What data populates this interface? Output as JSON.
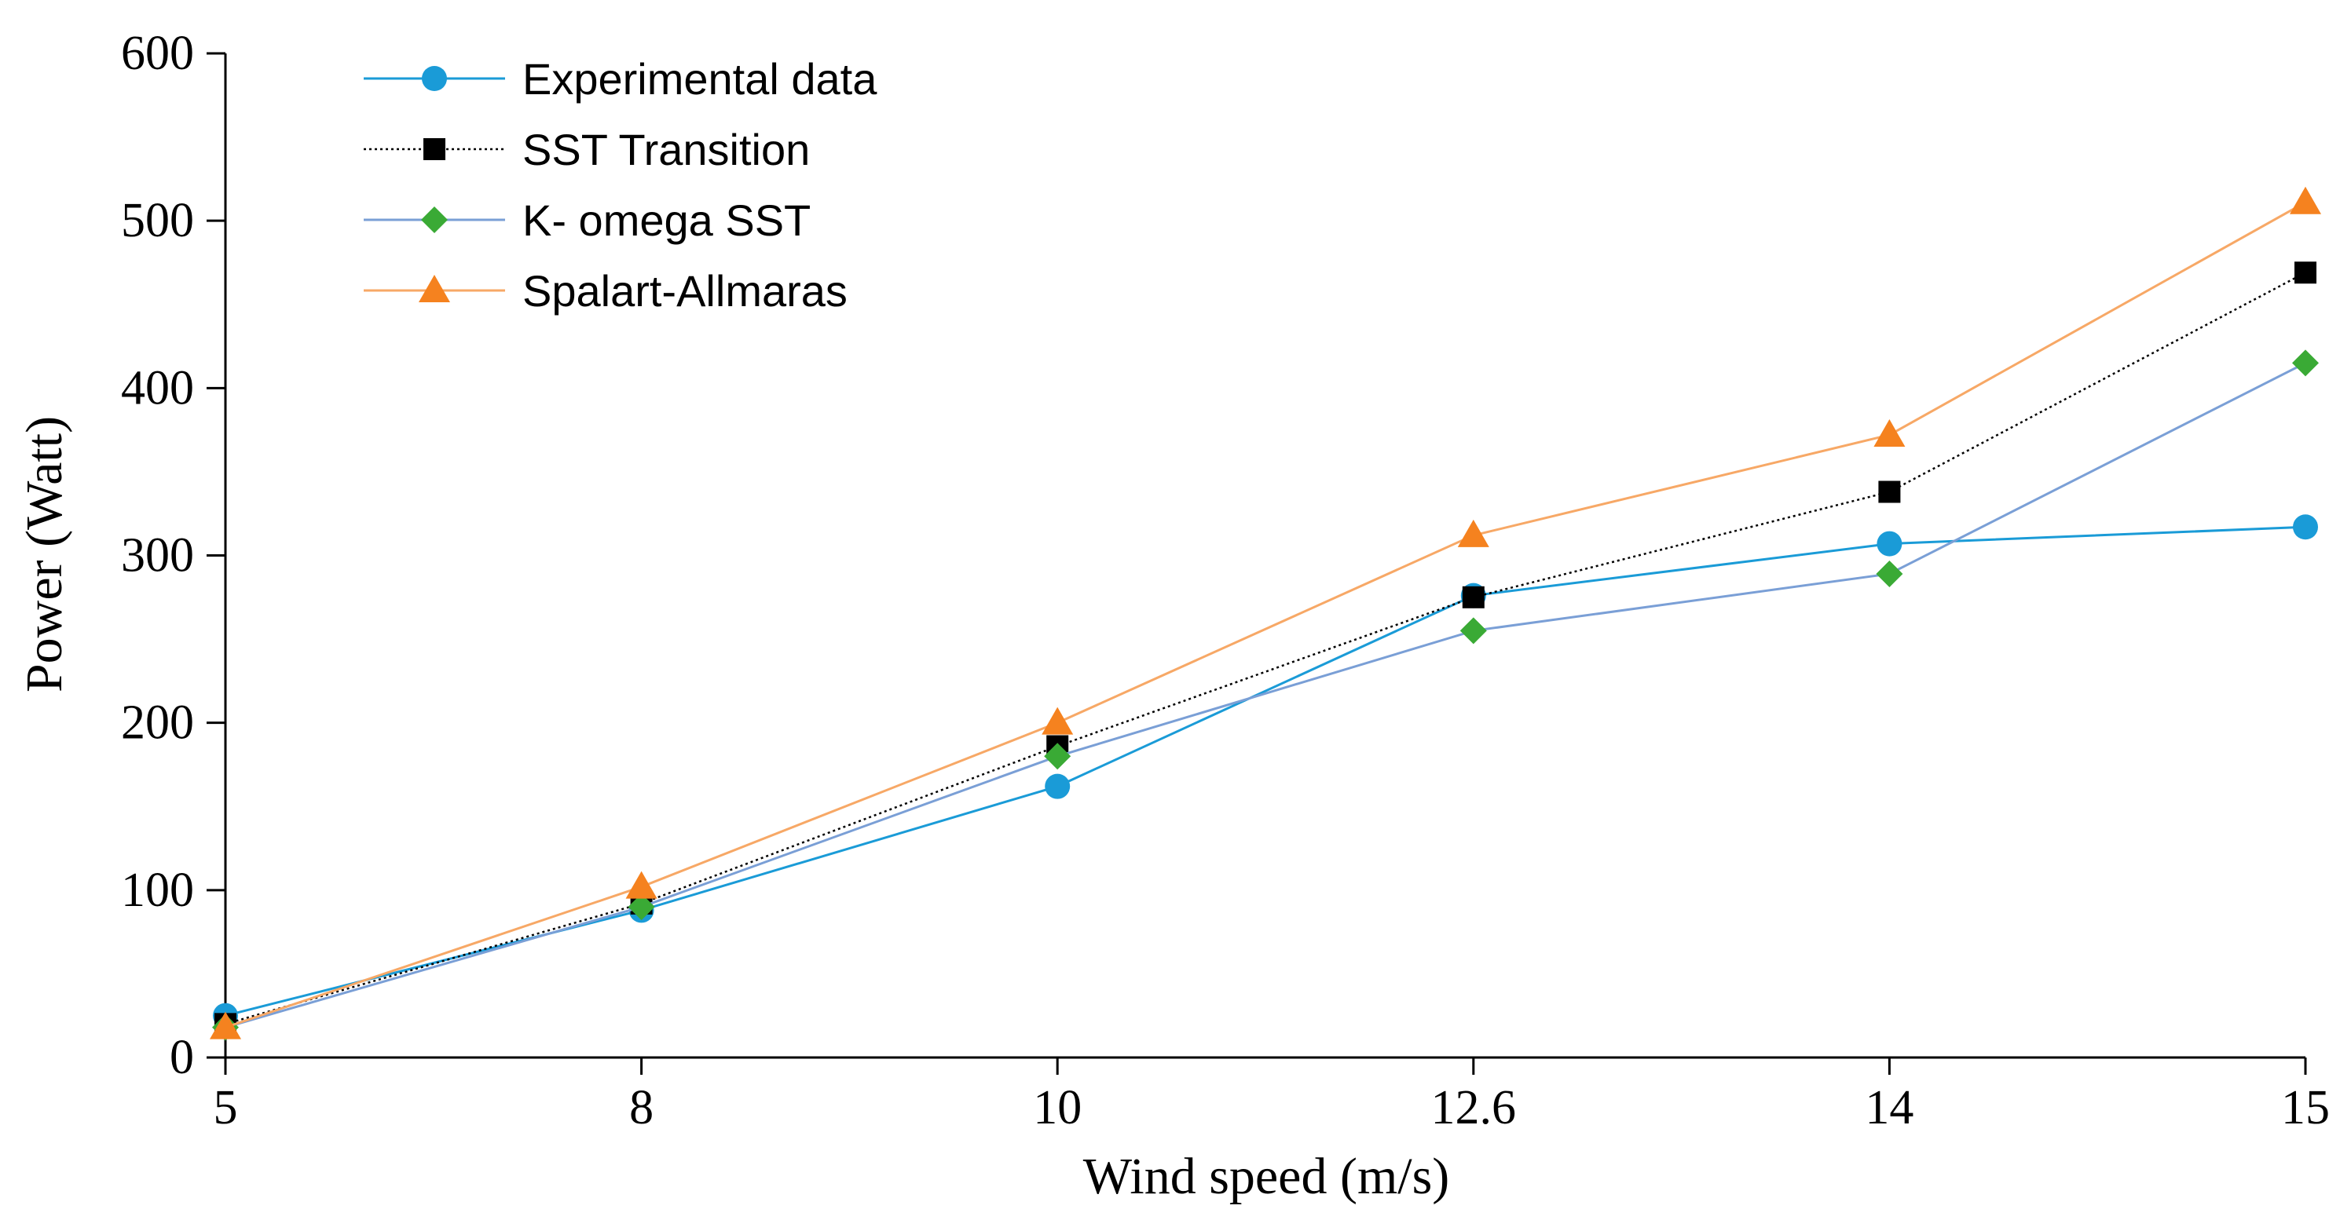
{
  "chart_data": {
    "type": "line",
    "title": "",
    "xlabel": "Wind speed (m/s)",
    "ylabel": "Power (Watt)",
    "categories": [
      "5",
      "8",
      "10",
      "12.6",
      "14",
      "15"
    ],
    "ylim": [
      0,
      600
    ],
    "yticks": [
      "0",
      "100",
      "200",
      "300",
      "400",
      "500",
      "600"
    ],
    "legend_position": "top-left",
    "series": [
      {
        "name": "Experimental data",
        "values": [
          25,
          88,
          162,
          276,
          307,
          317
        ],
        "color": "#1a9bd7",
        "marker": "circle",
        "line_style": "solid"
      },
      {
        "name": "SST Transition",
        "values": [
          20,
          92,
          186,
          275,
          338,
          469
        ],
        "color": "#000000",
        "marker": "square",
        "line_style": "dotted"
      },
      {
        "name": "K- omega SST",
        "values": [
          18,
          90,
          180,
          255,
          289,
          415
        ],
        "color": "#3aaa35",
        "line_color": "#7a9fd6",
        "marker": "diamond",
        "line_style": "solid"
      },
      {
        "name": "Spalart-Allmaras",
        "values": [
          18,
          102,
          200,
          312,
          372,
          511
        ],
        "color": "#f5821f",
        "line_color": "#f7a866",
        "marker": "triangle",
        "line_style": "solid"
      }
    ]
  }
}
